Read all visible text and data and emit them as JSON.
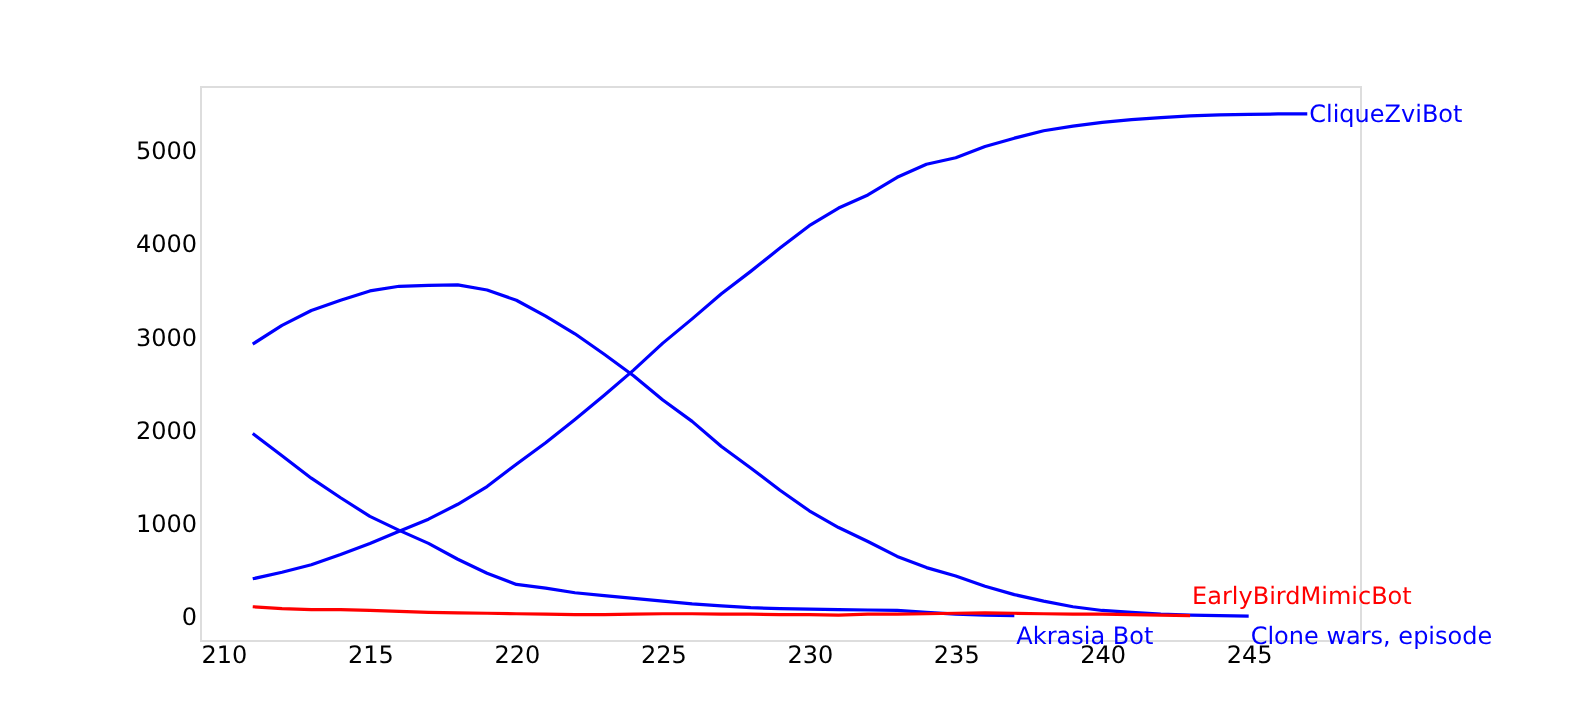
{
  "chart_data": {
    "type": "line",
    "xlim": [
      209.2,
      248.8
    ],
    "ylim": [
      -257,
      5690
    ],
    "xticks": [
      210,
      215,
      220,
      225,
      230,
      235,
      240,
      245
    ],
    "yticks": [
      0,
      1000,
      2000,
      3000,
      4000,
      5000
    ],
    "grid": false,
    "marker": "none",
    "line_style": "solid",
    "series": [
      {
        "name": "CliqueZviBot",
        "color": "#0000ff",
        "x": [
          211,
          212,
          213,
          214,
          215,
          216,
          217,
          218,
          219,
          220,
          221,
          222,
          223,
          224,
          225,
          226,
          227,
          228,
          229,
          230,
          231,
          232,
          233,
          234,
          235,
          236,
          237,
          238,
          239,
          240,
          241,
          242,
          243,
          244,
          245,
          246,
          247
        ],
        "values": [
          400,
          470,
          550,
          660,
          780,
          910,
          1040,
          1200,
          1390,
          1630,
          1860,
          2110,
          2370,
          2640,
          2930,
          3190,
          3460,
          3700,
          3950,
          4190,
          4380,
          4520,
          4710,
          4850,
          4920,
          5040,
          5130,
          5210,
          5260,
          5300,
          5330,
          5350,
          5370,
          5380,
          5385,
          5390,
          5390
        ]
      },
      {
        "name": "Clone wars, episode",
        "color": "#0000ff",
        "x": [
          211,
          212,
          213,
          214,
          215,
          216,
          217,
          218,
          219,
          220,
          221,
          222,
          223,
          224,
          225,
          226,
          227,
          228,
          229,
          230,
          231,
          232,
          233,
          234,
          235,
          236,
          237,
          238,
          239,
          240,
          241,
          242,
          243,
          244,
          245
        ],
        "values": [
          2920,
          3120,
          3280,
          3390,
          3490,
          3540,
          3550,
          3555,
          3500,
          3390,
          3220,
          3030,
          2810,
          2580,
          2320,
          2090,
          1820,
          1590,
          1350,
          1130,
          950,
          800,
          640,
          520,
          430,
          320,
          230,
          160,
          100,
          60,
          40,
          20,
          10,
          5,
          0
        ]
      },
      {
        "name": "Akrasia Bot",
        "color": "#0000ff",
        "x": [
          211,
          212,
          213,
          214,
          215,
          216,
          217,
          218,
          219,
          220,
          221,
          222,
          223,
          224,
          225,
          226,
          227,
          228,
          229,
          230,
          231,
          232,
          233,
          234,
          235,
          236,
          237
        ],
        "values": [
          1960,
          1720,
          1480,
          1270,
          1070,
          920,
          780,
          610,
          460,
          340,
          300,
          250,
          220,
          190,
          160,
          130,
          110,
          90,
          80,
          75,
          70,
          65,
          60,
          40,
          20,
          10,
          5
        ]
      },
      {
        "name": "EarlyBirdMimicBot",
        "color": "#ff0000",
        "x": [
          211,
          212,
          213,
          214,
          215,
          216,
          217,
          218,
          219,
          220,
          221,
          222,
          223,
          224,
          225,
          226,
          227,
          228,
          229,
          230,
          231,
          232,
          233,
          234,
          235,
          236,
          237,
          238,
          239,
          240,
          241,
          242,
          243
        ],
        "values": [
          100,
          80,
          70,
          70,
          60,
          50,
          40,
          35,
          30,
          25,
          20,
          15,
          15,
          20,
          25,
          25,
          20,
          20,
          15,
          15,
          10,
          20,
          20,
          25,
          30,
          35,
          30,
          25,
          20,
          20,
          15,
          10,
          5
        ]
      }
    ]
  }
}
